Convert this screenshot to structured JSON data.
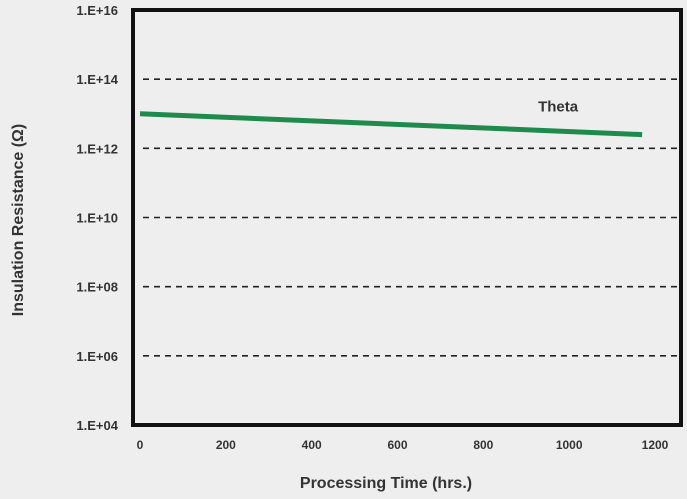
{
  "chart_data": {
    "type": "line",
    "title": "",
    "xlabel": "Processing Time (hrs.)",
    "ylabel": "Insulation Resistance (Ω)",
    "xlim": [
      0,
      1200
    ],
    "ylim": [
      10000,
      10000000000000000
    ],
    "y_scale": "log",
    "x_ticks": [
      0,
      200,
      400,
      600,
      800,
      1000,
      1200
    ],
    "x_tick_labels": [
      "0",
      "200",
      "400",
      "600",
      "800",
      "1000",
      "1200"
    ],
    "y_ticks": [
      10000,
      1000000,
      100000000,
      10000000000,
      1000000000000,
      100000000000000,
      10000000000000000
    ],
    "y_tick_labels": [
      "1.E+04",
      "1.E+06",
      "1.E+08",
      "1.E+10",
      "1.E+12",
      "1.E+14",
      "1.E+16"
    ],
    "grid": "horizontal dashed",
    "series": [
      {
        "name": "Theta",
        "color": "#1e8a4c",
        "x": [
          0,
          1170
        ],
        "y": [
          10000000000000,
          2500000000000
        ]
      }
    ]
  }
}
